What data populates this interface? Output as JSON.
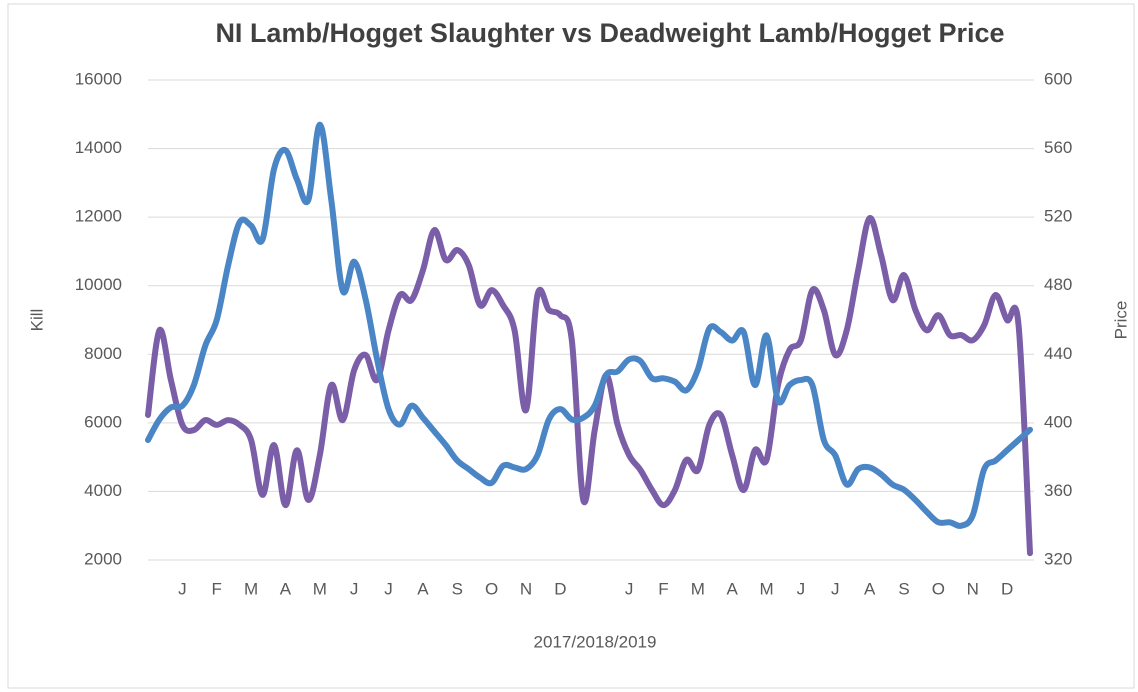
{
  "chart_data": {
    "type": "line",
    "title": "NI Lamb/Hogget Slaughter vs Deadweight Lamb/Hogget Price",
    "x_label": "2017/2018/2019",
    "y_label": "Kill",
    "y2_label": "Price",
    "categories": [
      null,
      null,
      null,
      "J",
      null,
      null,
      "F",
      null,
      null,
      "M",
      null,
      null,
      "A",
      null,
      null,
      "M",
      null,
      null,
      "J",
      null,
      null,
      "J",
      null,
      null,
      "A",
      null,
      null,
      "S",
      null,
      null,
      "O",
      null,
      null,
      "N",
      null,
      null,
      "D",
      null,
      null,
      null,
      null,
      null,
      "J",
      null,
      null,
      "F",
      null,
      null,
      "M",
      null,
      null,
      "A",
      null,
      null,
      "M",
      null,
      null,
      "J",
      null,
      null,
      "J",
      null,
      null,
      "A",
      null,
      null,
      "S",
      null,
      null,
      "O",
      null,
      null,
      "N",
      null,
      null,
      "D",
      null,
      null
    ],
    "series": [
      {
        "color": "#7b5ea8",
        "axis": "y",
        "values": [
          6230,
          8700,
          7250,
          5940,
          5790,
          6080,
          5940,
          6080,
          5940,
          5500,
          3900,
          5350,
          3600,
          5200,
          3750,
          5060,
          7100,
          6080,
          7540,
          7980,
          7250,
          8700,
          9730,
          9580,
          10450,
          11620,
          10750,
          11040,
          10600,
          9430,
          9870,
          9430,
          8700,
          6370,
          9730,
          9290,
          9140,
          8410,
          3750,
          5790,
          7390,
          5940,
          5060,
          4620,
          4040,
          3600,
          4040,
          4920,
          4620,
          5940,
          6230,
          5060,
          4040,
          5210,
          4920,
          7100,
          8120,
          8410,
          9870,
          9290,
          7980,
          8700,
          10450,
          11970,
          10890,
          9580,
          10310,
          9290,
          8700,
          9140,
          8560,
          8560,
          8410,
          8850,
          9730,
          9000,
          8850,
          2200
        ]
      },
      {
        "color": "#4a86c5",
        "axis": "y2",
        "values": [
          390,
          402,
          409,
          410,
          422,
          445,
          460,
          492,
          517,
          515,
          507,
          548,
          559,
          542,
          530,
          574,
          530,
          477,
          494,
          472,
          437,
          408,
          399,
          410,
          403,
          395,
          387,
          378,
          373,
          368,
          365,
          375,
          374,
          373,
          381,
          402,
          408,
          402,
          403,
          410,
          428,
          430,
          437,
          436,
          426,
          426,
          424,
          419,
          431,
          455,
          453,
          448,
          453,
          422,
          451,
          413,
          422,
          425,
          422,
          390,
          381,
          364,
          373,
          374,
          370,
          364,
          361,
          355,
          348,
          342,
          342,
          340,
          346,
          373,
          378,
          384,
          390,
          396
        ]
      }
    ],
    "ylim": [
      2000,
      16000
    ],
    "yticks": [
      2000,
      4000,
      6000,
      8000,
      10000,
      12000,
      14000,
      16000
    ],
    "y2lim": [
      320,
      600
    ],
    "y2ticks": [
      320,
      360,
      400,
      440,
      480,
      520,
      560,
      600
    ],
    "grid": true
  }
}
